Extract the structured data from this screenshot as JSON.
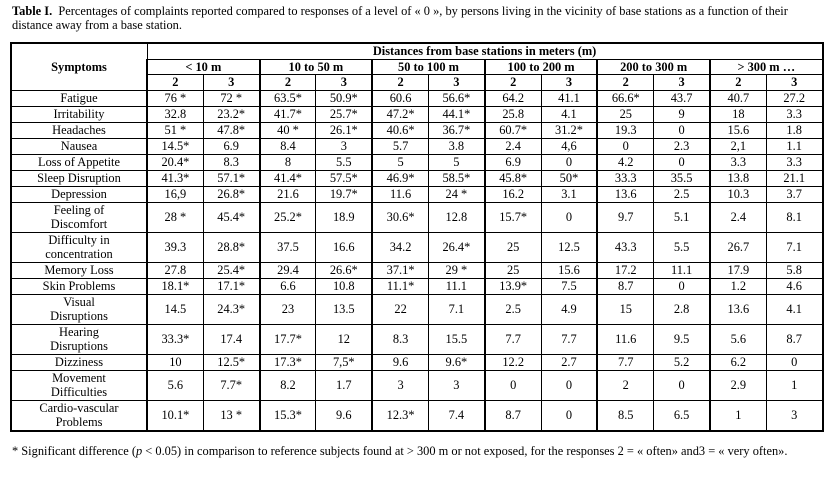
{
  "caption": {
    "label": "Table I.",
    "text": "Percentages of complaints reported compared to  responses of a level of « 0 », by persons living in the vicinity of base stations as a function of their distance away from a base station."
  },
  "table": {
    "symptoms_header": "Symptoms",
    "distance_header": "Distances from base stations in meters (m)",
    "groups": [
      "< 10 m",
      "10 to 50 m",
      "50 to 100 m",
      "100 to 200 m",
      "200 to 300 m",
      "> 300 m …"
    ],
    "subheaders": [
      "2",
      "3",
      "2",
      "3",
      "2",
      "3",
      "2",
      "3",
      "2",
      "3",
      "2",
      "3"
    ],
    "rows": [
      {
        "symptom": [
          "Fatigue"
        ],
        "values": [
          "76 *",
          "72 *",
          "63.5*",
          "50.9*",
          "60.6",
          "56.6*",
          "64.2",
          "41.1",
          "66.6*",
          "43.7",
          "40.7",
          "27.2"
        ]
      },
      {
        "symptom": [
          "Irritability"
        ],
        "values": [
          "32.8",
          "23.2*",
          "41.7*",
          "25.7*",
          "47.2*",
          "44.1*",
          "25.8",
          "4.1",
          "25",
          "9",
          "18",
          "3.3"
        ]
      },
      {
        "symptom": [
          "Headaches"
        ],
        "values": [
          "51 *",
          "47.8*",
          "40 *",
          "26.1*",
          "40.6*",
          "36.7*",
          "60.7*",
          "31.2*",
          "19.3",
          "0",
          "15.6",
          "1.8"
        ]
      },
      {
        "symptom": [
          "Nausea"
        ],
        "values": [
          "14.5*",
          "6.9",
          "8.4",
          "3",
          "5.7",
          "3.8",
          "2.4",
          "4,6",
          "0",
          "2.3",
          "2,1",
          "1.1"
        ]
      },
      {
        "symptom": [
          "Loss of Appetite"
        ],
        "values": [
          "20.4*",
          "8.3",
          "8",
          "5.5",
          "5",
          "5",
          "6.9",
          "0",
          "4.2",
          "0",
          "3.3",
          "3.3"
        ]
      },
      {
        "symptom": [
          "Sleep Disruption"
        ],
        "values": [
          "41.3*",
          "57.1*",
          "41.4*",
          "57.5*",
          "46.9*",
          "58.5*",
          "45.8*",
          "50*",
          "33.3",
          "35.5",
          "13.8",
          "21.1"
        ]
      },
      {
        "symptom": [
          "Depression"
        ],
        "values": [
          "16,9",
          "26.8*",
          "21.6",
          "19.7*",
          "11.6",
          "24 *",
          "16.2",
          "3.1",
          "13.6",
          "2.5",
          "10.3",
          "3.7"
        ]
      },
      {
        "symptom": [
          "Feeling of",
          "Discomfort"
        ],
        "values": [
          "28 *",
          "45.4*",
          "25.2*",
          "18.9",
          "30.6*",
          "12.8",
          "15.7*",
          "0",
          "9.7",
          "5.1",
          "2.4",
          "8.1"
        ]
      },
      {
        "symptom": [
          "Difficulty in",
          "concentration"
        ],
        "values": [
          "39.3",
          "28.8*",
          "37.5",
          "16.6",
          "34.2",
          "26.4*",
          "25",
          "12.5",
          "43.3",
          "5.5",
          "26.7",
          "7.1"
        ]
      },
      {
        "symptom": [
          "Memory Loss"
        ],
        "values": [
          "27.8",
          "25.4*",
          "29.4",
          "26.6*",
          "37.1*",
          "29 *",
          "25",
          "15.6",
          "17.2",
          "11.1",
          "17.9",
          "5.8"
        ]
      },
      {
        "symptom": [
          "Skin Problems"
        ],
        "values": [
          "18.1*",
          "17.1*",
          "6.6",
          "10.8",
          "11.1*",
          "11.1",
          "13.9*",
          "7.5",
          "8.7",
          "0",
          "1.2",
          "4.6"
        ]
      },
      {
        "symptom": [
          "Visual",
          "Disruptions"
        ],
        "values": [
          "14.5",
          "24.3*",
          "23",
          "13.5",
          "22",
          "7.1",
          "2.5",
          "4.9",
          "15",
          "2.8",
          "13.6",
          "4.1"
        ]
      },
      {
        "symptom": [
          "Hearing",
          "Disruptions"
        ],
        "values": [
          "33.3*",
          "17.4",
          "17.7*",
          "12",
          "8.3",
          "15.5",
          "7.7",
          "7.7",
          "11.6",
          "9.5",
          "5.6",
          "8.7"
        ]
      },
      {
        "symptom": [
          "Dizziness"
        ],
        "values": [
          "10",
          "12.5*",
          "17.3*",
          "7,5*",
          "9.6",
          "9.6*",
          "12.2",
          "2.7",
          "7.7",
          "5.2",
          "6.2",
          "0"
        ]
      },
      {
        "symptom": [
          "Movement",
          "Difficulties"
        ],
        "values": [
          "5.6",
          "7.7*",
          "8.2",
          "1.7",
          "3",
          "3",
          "0",
          "0",
          "2",
          "0",
          "2.9",
          "1"
        ]
      },
      {
        "symptom": [
          "Cardio-vascular",
          "Problems"
        ],
        "values": [
          "10.1*",
          "13 *",
          "15.3*",
          "9.6",
          "12.3*",
          "7.4",
          "8.7",
          "0",
          "8.5",
          "6.5",
          "1",
          "3"
        ]
      }
    ]
  },
  "footnote": {
    "before": "* Significant difference (",
    "italic": "p",
    "after": " < 0.05) in comparison to reference subjects found at  > 300 m or not exposed, for the responses 2 = « often» and3 = « very often»."
  }
}
